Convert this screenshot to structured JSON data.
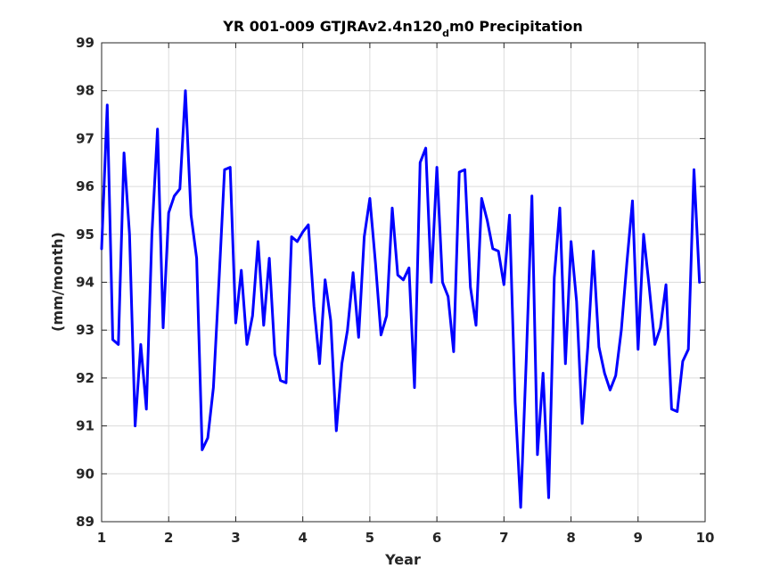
{
  "chart_data": {
    "type": "line",
    "title": {
      "main": "YR 001-009 GTJRAv2.4n120",
      "subscript": "d",
      "suffix": "m0 Precipitation"
    },
    "xlabel": "Year",
    "ylabel": "(mm/month)",
    "xlim": [
      1,
      10
    ],
    "ylim": [
      89,
      99
    ],
    "xticks": [
      1,
      2,
      3,
      4,
      5,
      6,
      7,
      8,
      9,
      10
    ],
    "yticks": [
      89,
      90,
      91,
      92,
      93,
      94,
      95,
      96,
      97,
      98,
      99
    ],
    "grid": true,
    "series": [
      {
        "color": "#0000ff",
        "x": [
          1.0,
          1.0833,
          1.1667,
          1.25,
          1.3333,
          1.4167,
          1.5,
          1.5833,
          1.6667,
          1.75,
          1.8333,
          1.9167,
          2.0,
          2.0833,
          2.1667,
          2.25,
          2.3333,
          2.4167,
          2.5,
          2.5833,
          2.6667,
          2.75,
          2.8333,
          2.9167,
          3.0,
          3.0833,
          3.1667,
          3.25,
          3.3333,
          3.4167,
          3.5,
          3.5833,
          3.6667,
          3.75,
          3.8333,
          3.9167,
          4.0,
          4.0833,
          4.1667,
          4.25,
          4.3333,
          4.4167,
          4.5,
          4.5833,
          4.6667,
          4.75,
          4.8333,
          4.9167,
          5.0,
          5.0833,
          5.1667,
          5.25,
          5.3333,
          5.4167,
          5.5,
          5.5833,
          5.6667,
          5.75,
          5.8333,
          5.9167,
          6.0,
          6.0833,
          6.1667,
          6.25,
          6.3333,
          6.4167,
          6.5,
          6.5833,
          6.6667,
          6.75,
          6.8333,
          6.9167,
          7.0,
          7.0833,
          7.1667,
          7.25,
          7.3333,
          7.4167,
          7.5,
          7.5833,
          7.6667,
          7.75,
          7.8333,
          7.9167,
          8.0,
          8.0833,
          8.1667,
          8.25,
          8.3333,
          8.4167,
          8.5,
          8.5833,
          8.6667,
          8.75,
          8.8333,
          8.9167,
          9.0,
          9.0833,
          9.1667,
          9.25,
          9.3333,
          9.4167,
          9.5,
          9.5833,
          9.6667,
          9.75,
          9.8333,
          9.9167
        ],
        "y": [
          94.7,
          97.7,
          92.8,
          92.7,
          96.7,
          95.0,
          91.0,
          92.7,
          91.35,
          95.0,
          97.2,
          93.05,
          95.45,
          95.8,
          95.95,
          98.0,
          95.4,
          94.5,
          90.5,
          90.75,
          91.8,
          94.0,
          96.35,
          96.4,
          93.15,
          94.25,
          92.7,
          93.3,
          94.85,
          93.1,
          94.5,
          92.5,
          91.95,
          91.9,
          94.95,
          94.85,
          95.05,
          95.2,
          93.5,
          92.3,
          94.05,
          93.2,
          90.9,
          92.3,
          93.0,
          94.2,
          92.85,
          94.95,
          95.75,
          94.4,
          92.9,
          93.3,
          95.55,
          94.15,
          94.05,
          94.3,
          91.8,
          96.5,
          96.8,
          94.0,
          96.4,
          94.0,
          93.7,
          92.55,
          96.3,
          96.35,
          93.9,
          93.1,
          95.75,
          95.3,
          94.7,
          94.65,
          93.95,
          95.4,
          91.5,
          89.3,
          92.4,
          95.8,
          90.4,
          92.1,
          89.5,
          94.1,
          95.55,
          92.3,
          94.85,
          93.6,
          91.05,
          92.65,
          94.65,
          92.65,
          92.1,
          91.75,
          92.05,
          93.0,
          94.4,
          95.7,
          92.6,
          95.0,
          93.9,
          92.7,
          93.05,
          93.95,
          91.35,
          91.3,
          92.35,
          92.6,
          96.35,
          94.0
        ]
      }
    ]
  }
}
